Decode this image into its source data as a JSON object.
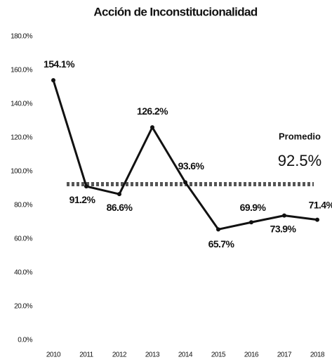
{
  "chart_data": {
    "type": "line",
    "title": "Acción de Inconstitucionalidad",
    "categories": [
      "2010",
      "2011",
      "2012",
      "2013",
      "2014",
      "2015",
      "2016",
      "2017",
      "2018"
    ],
    "series": [
      {
        "name": "Acción de Inconstitucionalidad",
        "color": "#111111",
        "values": [
          154.1,
          91.2,
          86.6,
          126.2,
          93.6,
          65.7,
          69.9,
          73.9,
          71.4
        ],
        "value_labels": [
          "154.1%",
          "91.2%",
          "86.6%",
          "126.2%",
          "93.6%",
          "65.7%",
          "69.9%",
          "73.9%",
          "71.4%"
        ]
      }
    ],
    "ylim": [
      0,
      180
    ],
    "yticks": [
      {
        "value": 0,
        "label": "0.0%"
      },
      {
        "value": 20,
        "label": "20.0%"
      },
      {
        "value": 40,
        "label": "40.0%"
      },
      {
        "value": 60,
        "label": "60.0%"
      },
      {
        "value": 80,
        "label": "80.0%"
      },
      {
        "value": 100,
        "label": "100.0%"
      },
      {
        "value": 120,
        "label": "120.0%"
      },
      {
        "value": 140,
        "label": "140.0%"
      },
      {
        "value": 160,
        "label": "160.0%"
      },
      {
        "value": 180,
        "label": "180.0%"
      }
    ],
    "grid": false,
    "average": {
      "label": "Promedio",
      "value": 92.5,
      "value_label": "92.5%"
    }
  }
}
